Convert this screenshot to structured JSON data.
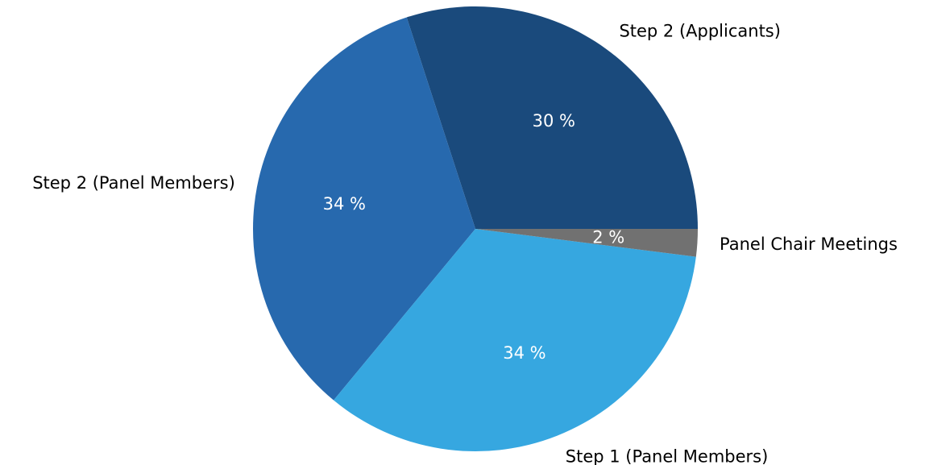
{
  "chart_data": {
    "type": "pie",
    "title": "",
    "slices": [
      {
        "label": "Step 2 (Applicants)",
        "value": 30,
        "value_label": "30 %",
        "color": "#1a4a7c"
      },
      {
        "label": "Step 2 (Panel Members)",
        "value": 34,
        "value_label": "34 %",
        "color": "#2769ae"
      },
      {
        "label": "Step 1 (Panel Members)",
        "value": 34,
        "value_label": "34 %",
        "color": "#36a7e0"
      },
      {
        "label": "Panel Chair Meetings",
        "value": 2,
        "value_label": "2 %",
        "color": "#717171"
      }
    ],
    "direction": "counterclockwise",
    "start": "3 o'clock",
    "legend": "none"
  }
}
